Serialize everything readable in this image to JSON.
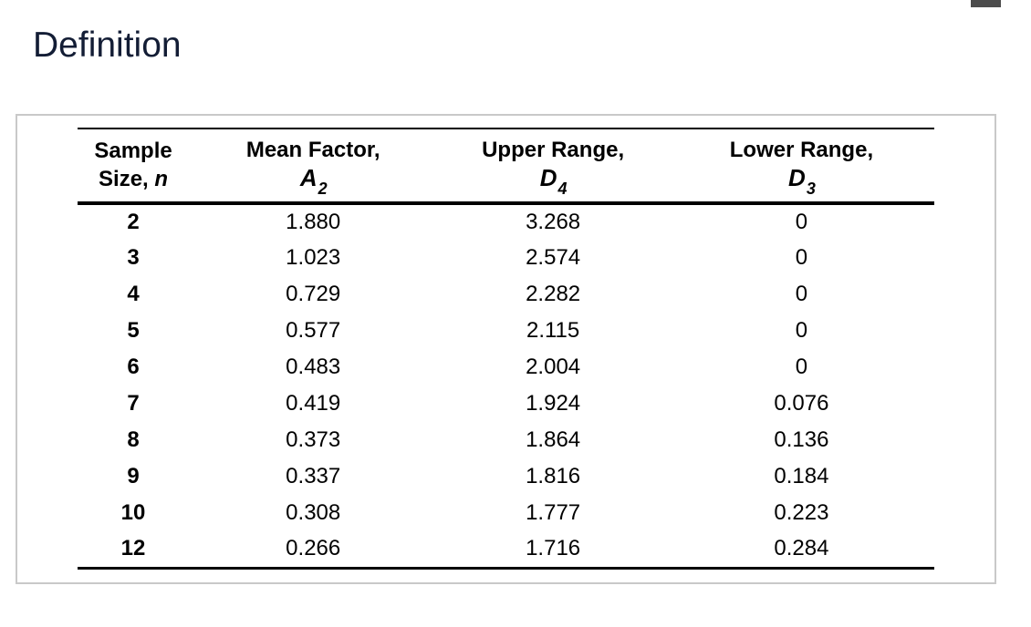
{
  "page": {
    "title": "Definition"
  },
  "colors": {
    "title_text": "#131d35",
    "table_text": "#000000",
    "panel_border": "#c9c9c9",
    "top_right_fragment": "#4c4c4c"
  },
  "table": {
    "headers": [
      {
        "line1": "Sample",
        "line2_prefix": "Size, ",
        "line2_italic": "n"
      },
      {
        "line1": "Mean Factor,",
        "symbol": "A",
        "subscript": "2"
      },
      {
        "line1": "Upper Range,",
        "symbol": "D",
        "subscript": "4"
      },
      {
        "line1": "Lower Range,",
        "symbol": "D",
        "subscript": "3"
      }
    ],
    "rows": [
      {
        "n": "2",
        "a2": "1.880",
        "d4": "3.268",
        "d3": "0"
      },
      {
        "n": "3",
        "a2": "1.023",
        "d4": "2.574",
        "d3": "0"
      },
      {
        "n": "4",
        "a2": "0.729",
        "d4": "2.282",
        "d3": "0"
      },
      {
        "n": "5",
        "a2": "0.577",
        "d4": "2.115",
        "d3": "0"
      },
      {
        "n": "6",
        "a2": "0.483",
        "d4": "2.004",
        "d3": "0"
      },
      {
        "n": "7",
        "a2": "0.419",
        "d4": "1.924",
        "d3": "0.076"
      },
      {
        "n": "8",
        "a2": "0.373",
        "d4": "1.864",
        "d3": "0.136"
      },
      {
        "n": "9",
        "a2": "0.337",
        "d4": "1.816",
        "d3": "0.184"
      },
      {
        "n": "10",
        "a2": "0.308",
        "d4": "1.777",
        "d3": "0.223"
      },
      {
        "n": "12",
        "a2": "0.266",
        "d4": "1.716",
        "d3": "0.284"
      }
    ]
  }
}
